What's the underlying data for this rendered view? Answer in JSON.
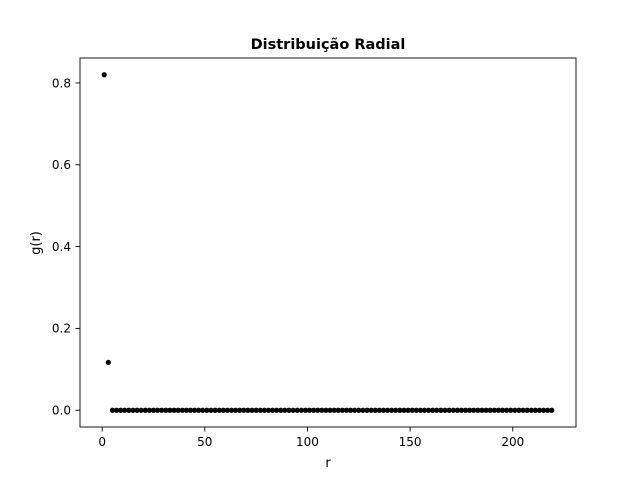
{
  "chart_data": {
    "type": "scatter",
    "title": "Distribuição Radial",
    "xlabel": "r",
    "ylabel": "g(r)",
    "xlim": [
      -10.8,
      230.8
    ],
    "ylim": [
      -0.041,
      0.861
    ],
    "xticks": [
      0,
      50,
      100,
      150,
      200
    ],
    "xtick_labels": [
      "0",
      "50",
      "100",
      "150",
      "200"
    ],
    "yticks": [
      0.0,
      0.2,
      0.4,
      0.6,
      0.8
    ],
    "ytick_labels": [
      "0.0",
      "0.2",
      "0.4",
      "0.6",
      "0.8"
    ],
    "grid": false,
    "marker_color": "#000000",
    "series": [
      {
        "x_start": 1,
        "x_step": 2,
        "count": 110,
        "y_head": [
          0.82,
          0.117
        ],
        "y_rest": 0.0
      }
    ]
  }
}
